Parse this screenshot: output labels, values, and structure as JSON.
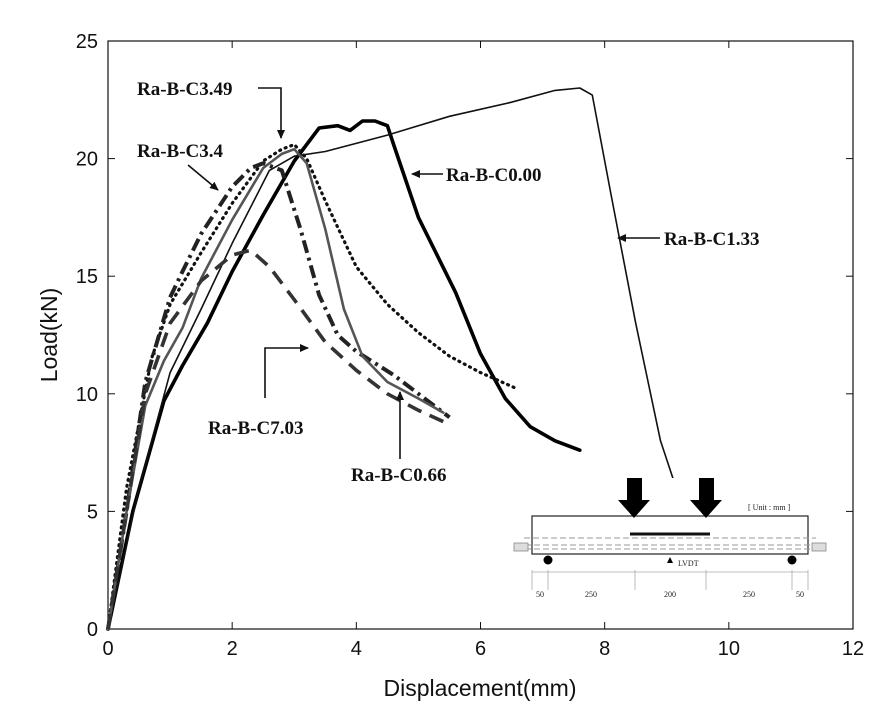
{
  "chart_data": {
    "type": "line",
    "xlabel": "Displacement(mm)",
    "ylabel": "Load(kN)",
    "xlim": [
      0,
      12
    ],
    "ylim": [
      0,
      25
    ],
    "xticks": [
      0,
      2,
      4,
      6,
      8,
      10,
      12
    ],
    "yticks": [
      0,
      5,
      10,
      15,
      20,
      25
    ],
    "grid": false,
    "series": [
      {
        "name": "Ra-B-C0.00",
        "style": "solid-thick",
        "color": "#000000",
        "x": [
          0,
          0.4,
          0.9,
          1.2,
          1.6,
          2.0,
          2.5,
          3.0,
          3.4,
          3.7,
          3.9,
          4.1,
          4.3,
          4.5,
          4.6,
          5.0,
          5.6,
          6.0,
          6.4,
          6.8,
          7.2,
          7.6
        ],
        "y": [
          0,
          5.0,
          9.7,
          11.2,
          13.0,
          15.2,
          17.6,
          19.9,
          21.3,
          21.4,
          21.2,
          21.6,
          21.6,
          21.4,
          20.6,
          17.5,
          14.3,
          11.7,
          9.8,
          8.6,
          8.0,
          7.6
        ]
      },
      {
        "name": "Ra-B-C1.33",
        "style": "solid-thin",
        "color": "#111111",
        "x": [
          0,
          0.5,
          1.0,
          1.5,
          2.0,
          2.6,
          3.0,
          3.5,
          4.5,
          5.5,
          6.5,
          7.2,
          7.6,
          7.8,
          8.1,
          8.5,
          8.9,
          9.1
        ],
        "y": [
          0,
          6.0,
          10.9,
          13.6,
          16.4,
          19.5,
          20.1,
          20.3,
          21.0,
          21.8,
          22.4,
          22.9,
          23.0,
          22.7,
          18.5,
          13.0,
          8.0,
          6.4
        ]
      },
      {
        "name": "Ra-B-C3.49",
        "style": "dotted",
        "color": "#111111",
        "x": [
          0,
          0.3,
          0.7,
          1.0,
          1.5,
          2.0,
          2.5,
          2.8,
          3.0,
          3.2,
          3.5,
          4.0,
          4.5,
          5.0,
          5.5,
          6.0,
          6.6
        ],
        "y": [
          0,
          6.0,
          11.5,
          13.8,
          16.0,
          18.1,
          19.9,
          20.4,
          20.6,
          20.0,
          18.2,
          15.4,
          13.8,
          12.6,
          11.6,
          10.9,
          10.2
        ]
      },
      {
        "name": "Ra-B-C3.4",
        "style": "dash-dot-thick",
        "color": "#222222",
        "x": [
          0,
          0.3,
          0.6,
          1.0,
          1.2,
          1.5,
          2.0,
          2.3,
          2.5,
          2.8,
          3.1,
          3.4,
          3.7,
          4.0,
          4.3,
          4.6,
          5.0,
          5.5
        ],
        "y": [
          0,
          5.0,
          10.5,
          14.1,
          15.2,
          16.8,
          18.8,
          19.6,
          19.8,
          19.5,
          17.0,
          14.2,
          12.5,
          11.8,
          11.3,
          10.8,
          10.0,
          9.0
        ]
      },
      {
        "name": "Ra-B-C0.66",
        "style": "solid-gray",
        "color": "#555555",
        "x": [
          0,
          0.3,
          0.6,
          0.9,
          1.2,
          1.5,
          2.0,
          2.5,
          2.8,
          3.0,
          3.2,
          3.5,
          3.8,
          4.1,
          4.5,
          5.0,
          5.4
        ],
        "y": [
          0,
          5.0,
          9.5,
          11.4,
          12.8,
          14.9,
          17.4,
          19.6,
          20.2,
          20.4,
          19.8,
          17.0,
          13.6,
          11.6,
          10.5,
          9.8,
          9.2
        ]
      },
      {
        "name": "Ra-B-C7.03",
        "style": "dashed-thick",
        "color": "#333333",
        "x": [
          0,
          0.3,
          0.6,
          1.0,
          1.5,
          2.0,
          2.3,
          2.6,
          3.0,
          3.5,
          4.0,
          4.5,
          5.0,
          5.5
        ],
        "y": [
          0,
          5.0,
          10.0,
          13.0,
          14.8,
          15.9,
          16.1,
          15.4,
          14.0,
          12.2,
          11.0,
          10.0,
          9.3,
          8.7
        ]
      }
    ],
    "annotations": [
      {
        "text": "Ra-B-C3.49",
        "series": "Ra-B-C3.49"
      },
      {
        "text": "Ra-B-C3.4",
        "series": "Ra-B-C3.4"
      },
      {
        "text": "Ra-B-C0.00",
        "series": "Ra-B-C0.00"
      },
      {
        "text": "Ra-B-C1.33",
        "series": "Ra-B-C1.33"
      },
      {
        "text": "Ra-B-C7.03",
        "series": "Ra-B-C7.03"
      },
      {
        "text": "Ra-B-C0.66",
        "series": "Ra-B-C0.66"
      }
    ],
    "inset": {
      "unit_label": "[ Unit : mm ]",
      "sensor_label": "LVDT",
      "dimensions": [
        "50",
        "250",
        "200",
        "250",
        "50"
      ]
    }
  }
}
